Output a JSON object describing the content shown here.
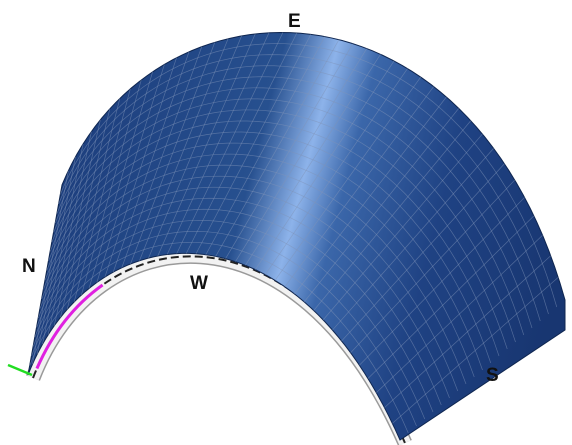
{
  "labels": {
    "east": "E",
    "north": "N",
    "west": "W",
    "south": "S"
  }
}
